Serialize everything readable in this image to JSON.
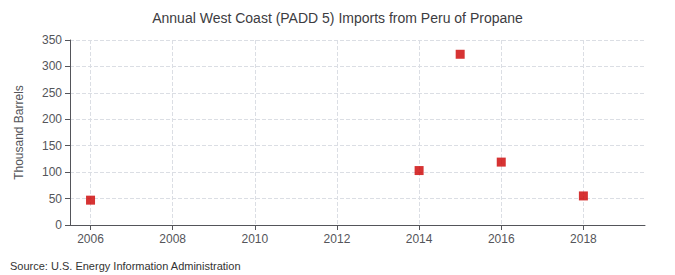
{
  "chart_data": {
    "type": "scatter",
    "title": "Annual West Coast (PADD 5) Imports from Peru of Propane",
    "ylabel": "Thousand Barrels",
    "annotations": [
      "Source: U.S. Energy Information Administration"
    ],
    "x": [
      2006,
      2014,
      2015,
      2016,
      2018
    ],
    "values": [
      47,
      103,
      323,
      119,
      55
    ],
    "color": "#cc0000",
    "marker": "square",
    "xlim": [
      2005.5,
      2019.5
    ],
    "xticks": [
      2006,
      2008,
      2010,
      2012,
      2014,
      2016,
      2018
    ],
    "ylim": [
      0,
      350
    ],
    "yticks": [
      0,
      50,
      100,
      150,
      200,
      250,
      300,
      350
    ],
    "grid": true
  }
}
